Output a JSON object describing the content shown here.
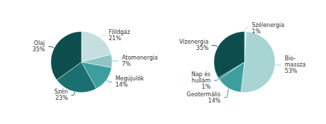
{
  "chart_data": [
    {
      "type": "pie",
      "categories": [
        "Földgáz",
        "Atomenergia",
        "Megújulók",
        "Szén",
        "Olaj"
      ],
      "values": [
        21,
        7,
        14,
        23,
        35
      ],
      "value_labels": [
        "21%",
        "7%",
        "14%",
        "23%",
        "35%"
      ],
      "colors": [
        "#c5dfe0",
        "#8ec5c5",
        "#3d9e9e",
        "#1a7070",
        "#0d4d4d"
      ]
    },
    {
      "type": "pie",
      "categories": [
        "Szélenergia",
        "Bio-\nmassza",
        "Geotermális",
        "Nap és\nhullám",
        "Vízenergia"
      ],
      "values": [
        1,
        53,
        14,
        1,
        35
      ],
      "value_labels": [
        "1%",
        "53%",
        "14%",
        "1%",
        "35%"
      ],
      "colors": [
        "#c5dfe0",
        "#a8d4d4",
        "#3d9e9e",
        "#2a8a8a",
        "#0d4d4d"
      ]
    }
  ]
}
